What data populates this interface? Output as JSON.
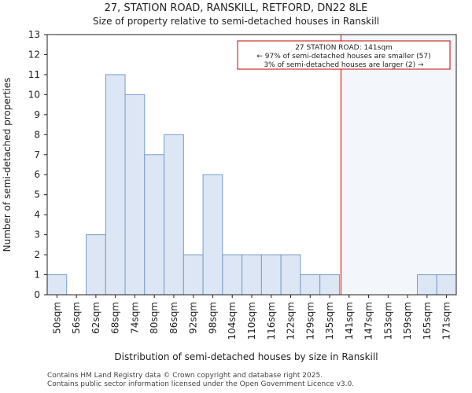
{
  "chart_data": {
    "type": "bar",
    "title": "27, STATION ROAD, RANSKILL, RETFORD, DN22 8LE",
    "subtitle": "Size of property relative to semi-detached houses in Ranskill",
    "xlabel": "Distribution of semi-detached houses by size in Ranskill",
    "ylabel": "Number of semi-detached properties",
    "ylim": [
      0,
      13
    ],
    "yticks": [
      0,
      1,
      2,
      3,
      4,
      5,
      6,
      7,
      8,
      9,
      10,
      11,
      12,
      13
    ],
    "categories": [
      "50sqm",
      "56sqm",
      "62sqm",
      "68sqm",
      "74sqm",
      "80sqm",
      "86sqm",
      "92sqm",
      "98sqm",
      "104sqm",
      "110sqm",
      "116sqm",
      "122sqm",
      "129sqm",
      "135sqm",
      "141sqm",
      "147sqm",
      "153sqm",
      "159sqm",
      "165sqm",
      "171sqm"
    ],
    "values": [
      1,
      0,
      3,
      11,
      10,
      7,
      8,
      2,
      6,
      2,
      2,
      2,
      2,
      1,
      1,
      0,
      0,
      0,
      0,
      1,
      1
    ],
    "bar_color": "#dce6f4",
    "bar_edge_color": "#7a9cc6",
    "highlight_color": "#cc0000",
    "highlight_value_sqm": 141,
    "grid": false,
    "annotation": {
      "line1": "27 STATION ROAD: 141sqm",
      "line2": "← 97% of semi-detached houses are smaller (57)",
      "line3": "3% of semi-detached houses are larger (2) →",
      "position": "top-right"
    }
  },
  "footer": {
    "line1": "Contains HM Land Registry data © Crown copyright and database right 2025.",
    "line2": "Contains public sector information licensed under the Open Government Licence v3.0."
  }
}
